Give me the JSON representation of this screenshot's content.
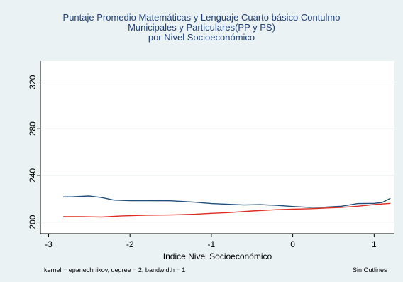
{
  "chart_data": {
    "type": "line",
    "title_lines": [
      "Puntaje Promedio Matemáticas y Lenguaje Cuarto básico Contulmo",
      "Municipales y Particulares(PP y PS)",
      "por Nivel Socioeconómico"
    ],
    "xlabel": "Indice Nivel Socioeconómico",
    "ylabel": "",
    "xlim": [
      -3.1,
      1.25
    ],
    "ylim": [
      190,
      338
    ],
    "x_ticks": [
      -3,
      -2,
      -1,
      0,
      1
    ],
    "x_tick_labels": [
      "-3",
      "-2",
      "-1",
      "0",
      "1"
    ],
    "y_ticks": [
      200,
      240,
      280,
      320
    ],
    "y_tick_labels": [
      "200",
      "240",
      "280",
      "320"
    ],
    "grid": true,
    "legend": "none",
    "series": [
      {
        "color": "#1f4e79",
        "x": [
          -2.82,
          -2.7,
          -2.5,
          -2.35,
          -2.2,
          -2.0,
          -1.8,
          -1.5,
          -1.2,
          -1.0,
          -0.8,
          -0.6,
          -0.4,
          -0.2,
          0.0,
          0.2,
          0.4,
          0.6,
          0.8,
          1.0,
          1.1,
          1.2
        ],
        "y": [
          221.5,
          221.6,
          222.3,
          221.0,
          218.8,
          218.3,
          218.3,
          218.2,
          217.0,
          215.8,
          215.2,
          214.6,
          214.9,
          214.3,
          213.3,
          212.6,
          212.8,
          213.6,
          215.8,
          216.0,
          216.8,
          220.3
        ]
      },
      {
        "color": "#e02b1f",
        "x": [
          -2.82,
          -2.6,
          -2.35,
          -2.1,
          -1.8,
          -1.5,
          -1.2,
          -1.0,
          -0.8,
          -0.5,
          -0.2,
          0.0,
          0.2,
          0.4,
          0.6,
          0.8,
          1.0,
          1.2
        ],
        "y": [
          204.7,
          204.7,
          204.3,
          205.3,
          205.9,
          206.1,
          206.7,
          207.5,
          208.1,
          209.5,
          210.6,
          211.1,
          211.4,
          212.0,
          212.6,
          213.6,
          215.0,
          216.0
        ]
      }
    ]
  },
  "notes": {
    "kernel": "kernel = epanechnikov, degree = 2, bandwidth = 1",
    "outliers": "Sin Outlines"
  },
  "colors": {
    "background": "#eaf2f3",
    "plot_background": "#ffffff",
    "title": "#1f3f73"
  }
}
